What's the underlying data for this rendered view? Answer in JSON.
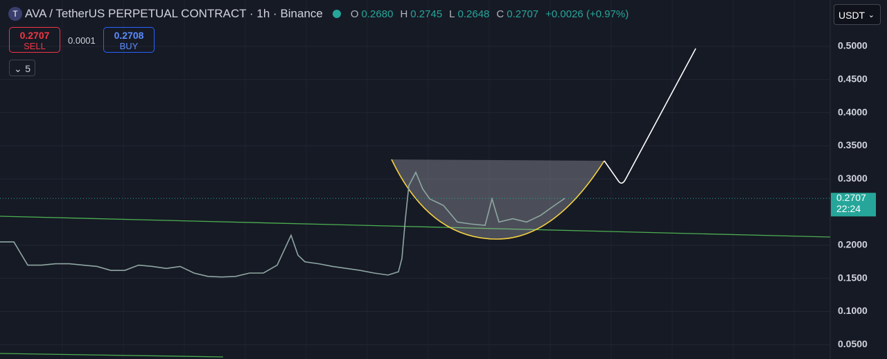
{
  "header": {
    "symbol": "AVA / TetherUS PERPETUAL CONTRACT · 1h · Binance",
    "open_label": "O",
    "open": "0.2680",
    "high_label": "H",
    "high": "0.2745",
    "low_label": "L",
    "low": "0.2648",
    "close_label": "C",
    "close": "0.2707",
    "change": "+0.0026 (+0.97%)"
  },
  "order": {
    "sell_price": "0.2707",
    "sell": "SELL",
    "spread": "0.0001",
    "buy_price": "0.2708",
    "buy": "BUY"
  },
  "indicators_count": "5",
  "currency": "USDT",
  "chart_data": {
    "type": "line",
    "color": "#8fa7a2",
    "x": [
      0,
      20,
      40,
      60,
      80,
      100,
      120,
      140,
      160,
      180,
      200,
      220,
      240,
      260,
      280,
      300,
      320,
      340,
      360,
      380,
      400,
      420,
      430,
      440,
      460,
      480,
      500,
      520,
      540,
      560,
      575,
      580,
      585,
      590,
      600,
      610,
      620,
      640,
      660,
      680,
      700,
      710,
      720,
      740,
      760,
      780,
      800,
      815
    ],
    "values": [
      0.205,
      0.205,
      0.17,
      0.17,
      0.172,
      0.172,
      0.17,
      0.168,
      0.162,
      0.162,
      0.17,
      0.168,
      0.165,
      0.168,
      0.158,
      0.153,
      0.152,
      0.153,
      0.158,
      0.158,
      0.17,
      0.215,
      0.185,
      0.175,
      0.172,
      0.168,
      0.165,
      0.162,
      0.158,
      0.155,
      0.16,
      0.18,
      0.24,
      0.29,
      0.31,
      0.285,
      0.27,
      0.26,
      0.235,
      0.232,
      0.23,
      0.27,
      0.235,
      0.24,
      0.235,
      0.245,
      0.26,
      0.2707
    ],
    "xlim": [
      0,
      1198
    ],
    "ylim": [
      0.0283,
      0.5701
    ],
    "yticks": [
      {
        "value": 0.5,
        "label": "0.5000"
      },
      {
        "value": 0.45,
        "label": "0.4500"
      },
      {
        "value": 0.4,
        "label": "0.4000"
      },
      {
        "value": 0.35,
        "label": "0.3500"
      },
      {
        "value": 0.3,
        "label": "0.3000"
      },
      {
        "value": 0.2,
        "label": "0.2000"
      },
      {
        "value": 0.15,
        "label": "0.1500"
      },
      {
        "value": 0.1,
        "label": "0.1000"
      },
      {
        "value": 0.05,
        "label": "0.0500"
      }
    ],
    "grid": true,
    "last_price": 0.2707,
    "last_price_time": "22:24"
  }
}
